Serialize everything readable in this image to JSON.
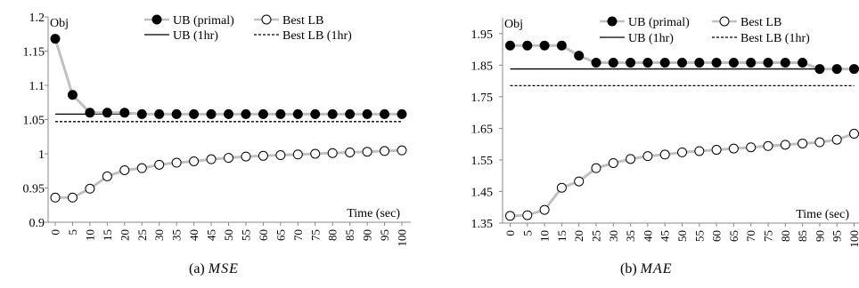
{
  "figure": {
    "captions": [
      {
        "label": "(a)",
        "name": "MSE"
      },
      {
        "label": "(b)",
        "name": "MAE"
      }
    ]
  },
  "chart_data": [
    {
      "type": "line",
      "ylabel": "Obj",
      "xlabel": "Time (sec)",
      "ylim": [
        0.9,
        1.2
      ],
      "yticks": [
        0.9,
        0.95,
        1,
        1.05,
        1.1,
        1.15,
        1.2
      ],
      "ytick_labels": [
        "0.9",
        "0.95",
        "1",
        "1.05",
        "1.1",
        "1.15",
        "1.2"
      ],
      "categories": [
        "0",
        "5",
        "10",
        "15",
        "20",
        "25",
        "30",
        "35",
        "40",
        "45",
        "50",
        "55",
        "60",
        "65",
        "70",
        "75",
        "80",
        "85",
        "90",
        "95",
        "100"
      ],
      "grid": false,
      "legend_position": "top-right",
      "series": [
        {
          "name": "UB (primal)",
          "style": "line-marker",
          "marker": "filled-circle",
          "color": "#000000",
          "line_color": "#c0c0c0",
          "values": [
            1.168,
            1.086,
            1.06,
            1.06,
            1.06,
            1.058,
            1.058,
            1.058,
            1.058,
            1.058,
            1.058,
            1.058,
            1.058,
            1.058,
            1.058,
            1.058,
            1.058,
            1.058,
            1.058,
            1.058,
            1.058
          ]
        },
        {
          "name": "Best LB",
          "style": "line-marker",
          "marker": "open-circle",
          "color": "#000000",
          "line_color": "#c0c0c0",
          "values": [
            0.936,
            0.936,
            0.949,
            0.967,
            0.976,
            0.979,
            0.984,
            0.987,
            0.989,
            0.992,
            0.994,
            0.996,
            0.997,
            0.998,
            0.999,
            1.0,
            1.001,
            1.002,
            1.003,
            1.004,
            1.005
          ]
        },
        {
          "name": "UB (1hr)",
          "style": "solid",
          "color": "#000000",
          "value": 1.058
        },
        {
          "name": "Best LB (1hr)",
          "style": "dashed",
          "color": "#000000",
          "value": 1.047
        }
      ]
    },
    {
      "type": "line",
      "ylabel": "Obj",
      "xlabel": "Time (sec)",
      "ylim": [
        1.35,
        2.0
      ],
      "yticks": [
        1.35,
        1.45,
        1.55,
        1.65,
        1.75,
        1.85,
        1.95
      ],
      "ytick_labels": [
        "1.35",
        "1.45",
        "1.55",
        "1.65",
        "1.75",
        "1.85",
        "1.95"
      ],
      "categories": [
        "0",
        "5",
        "10",
        "15",
        "20",
        "25",
        "30",
        "35",
        "40",
        "45",
        "50",
        "55",
        "60",
        "65",
        "70",
        "75",
        "80",
        "85",
        "90",
        "95",
        "100"
      ],
      "grid": false,
      "legend_position": "top-right",
      "series": [
        {
          "name": "UB (primal)",
          "style": "line-marker",
          "marker": "filled-circle",
          "color": "#000000",
          "line_color": "#c0c0c0",
          "values": [
            1.912,
            1.912,
            1.912,
            1.912,
            1.88,
            1.858,
            1.858,
            1.858,
            1.858,
            1.858,
            1.858,
            1.858,
            1.858,
            1.858,
            1.858,
            1.858,
            1.858,
            1.858,
            1.838,
            1.838,
            1.838
          ]
        },
        {
          "name": "Best LB",
          "style": "line-marker",
          "marker": "open-circle",
          "color": "#000000",
          "line_color": "#c0c0c0",
          "values": [
            1.373,
            1.375,
            1.392,
            1.462,
            1.482,
            1.524,
            1.54,
            1.553,
            1.562,
            1.567,
            1.574,
            1.578,
            1.582,
            1.586,
            1.59,
            1.594,
            1.598,
            1.602,
            1.606,
            1.614,
            1.633
          ]
        },
        {
          "name": "UB (1hr)",
          "style": "solid",
          "color": "#000000",
          "value": 1.838
        },
        {
          "name": "Best LB (1hr)",
          "style": "dashed",
          "color": "#000000",
          "value": 1.785
        }
      ]
    }
  ]
}
